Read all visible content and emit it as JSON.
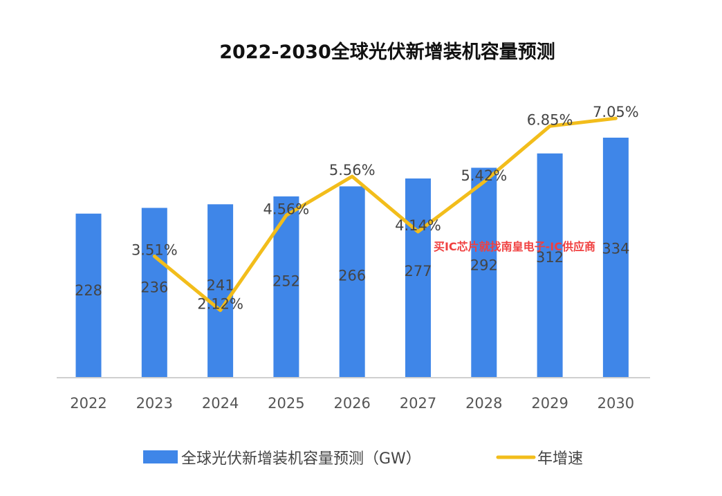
{
  "chart_data": {
    "type": "bar",
    "title": "2022-2030全球光伏新增装机容量预测",
    "categories": [
      "2022",
      "2023",
      "2024",
      "2025",
      "2026",
      "2027",
      "2028",
      "2029",
      "2030"
    ],
    "series": [
      {
        "name": "全球光伏新增装机容量预测（GW）",
        "type": "bar",
        "values": [
          228,
          236,
          241,
          252,
          266,
          277,
          292,
          312,
          334
        ],
        "value_labels": [
          "228",
          "236",
          "241",
          "252",
          "266",
          "277",
          "292",
          "312",
          "334"
        ],
        "color": "#3f86e8"
      },
      {
        "name": "年增速",
        "type": "line",
        "values": [
          null,
          3.51,
          2.12,
          4.56,
          5.56,
          4.14,
          5.42,
          6.85,
          7.05
        ],
        "value_labels": [
          "",
          "3.51%",
          "2.12%",
          "4.56%",
          "5.56%",
          "4.14%",
          "5.42%",
          "6.85%",
          "7.05%"
        ],
        "unit": "%",
        "color": "#f2bd1b"
      }
    ],
    "legend": {
      "placement": "bottom",
      "bar_label": "全球光伏新增装机容量预测（GW）",
      "line_label": "年增速"
    },
    "grid": false
  },
  "watermark": {
    "text": "买IC芯片就找南皇电子-IC供应商"
  }
}
